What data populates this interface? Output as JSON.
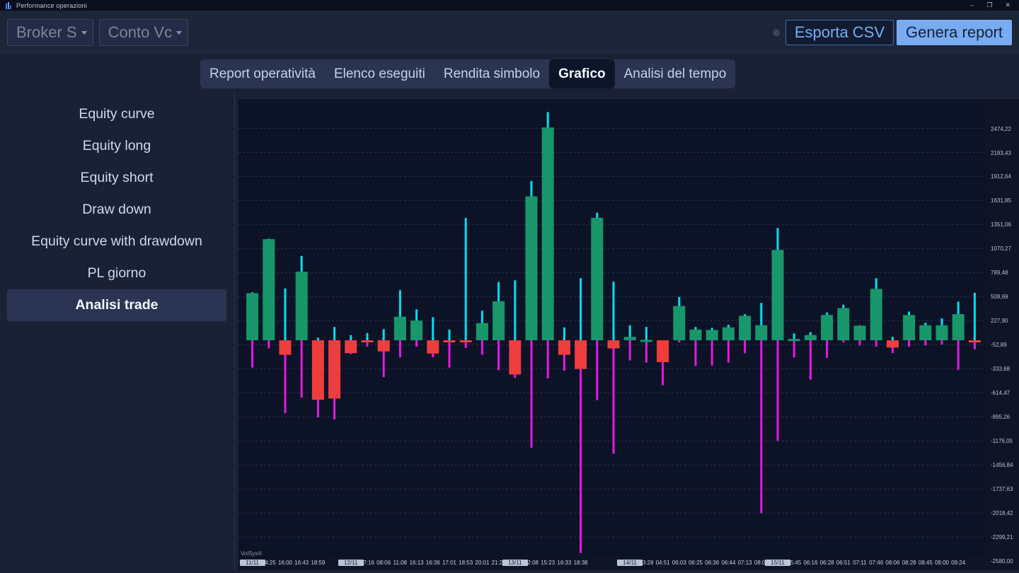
{
  "window": {
    "title": "Performance operazioni",
    "minimize": "–",
    "restore": "❐",
    "close": "✕"
  },
  "toolbar": {
    "broker_label": "Broker S",
    "conto_label": "Conto Vc",
    "options_icon": "◎",
    "export_csv_label": "Esporta CSV",
    "generate_report_label": "Genera report"
  },
  "tabs": [
    {
      "label": "Report operatività",
      "active": false
    },
    {
      "label": "Elenco eseguiti",
      "active": false
    },
    {
      "label": "Rendita simbolo",
      "active": false
    },
    {
      "label": "Grafico",
      "active": true
    },
    {
      "label": "Analisi del tempo",
      "active": false
    }
  ],
  "sidebar": {
    "items": [
      {
        "label": "Equity curve",
        "selected": false
      },
      {
        "label": "Equity long",
        "selected": false
      },
      {
        "label": "Equity short",
        "selected": false
      },
      {
        "label": "Draw down",
        "selected": false
      },
      {
        "label": "Equity curve with drawdown",
        "selected": false
      },
      {
        "label": "PL giorno",
        "selected": false
      },
      {
        "label": "Analisi trade",
        "selected": true
      }
    ]
  },
  "chart_data": {
    "type": "bar",
    "subtype": "trade-analysis-candles",
    "title": "Analisi trade",
    "watermark": "VolSys®",
    "grid": "dashed-horizontal",
    "legend_position": "none",
    "ylim": [
      -2580,
      2800
    ],
    "colors": {
      "profit_bar": "#17976a",
      "loss_bar": "#ee3d3d",
      "mfe_wick": "#00dff2",
      "mae_wick": "#e519e5"
    },
    "y_ticks": [
      {
        "label": "2474,22",
        "value": 2474.22
      },
      {
        "label": "2193,43",
        "value": 2193.43
      },
      {
        "label": "1912,64",
        "value": 1912.64
      },
      {
        "label": "1631,85",
        "value": 1631.85
      },
      {
        "label": "1351,06",
        "value": 1351.06
      },
      {
        "label": "1070,27",
        "value": 1070.27
      },
      {
        "label": "789,48",
        "value": 789.48
      },
      {
        "label": "508,69",
        "value": 508.69
      },
      {
        "label": "227,90",
        "value": 227.9
      },
      {
        "label": "-52,89",
        "value": -52.89
      },
      {
        "label": "-333,68",
        "value": -333.68
      },
      {
        "label": "-614,47",
        "value": -614.47
      },
      {
        "label": "-895,26",
        "value": -895.26
      },
      {
        "label": "-1176,05",
        "value": -1176.05
      },
      {
        "label": "-1456,84",
        "value": -1456.84
      },
      {
        "label": "-1737,63",
        "value": -1737.63
      },
      {
        "label": "-2018,42",
        "value": -2018.42
      },
      {
        "label": "-2299,21",
        "value": -2299.21
      },
      {
        "label": "-2580,00",
        "value": -2580.0
      }
    ],
    "bars": [
      {
        "label": "11/11",
        "v": 550,
        "hi": 560,
        "lo": -320
      },
      {
        "label": "14:25",
        "v": 1180,
        "hi": 1185,
        "lo": -95
      },
      {
        "label": "16:00",
        "v": -170,
        "hi": 605,
        "lo": -850
      },
      {
        "label": "16:43",
        "v": 800,
        "hi": 985,
        "lo": -670
      },
      {
        "label": "18:59",
        "v": -695,
        "hi": 30,
        "lo": -900
      },
      {
        "label": null,
        "v": -680,
        "hi": 155,
        "lo": -925
      },
      {
        "label": "12/11",
        "v": -150,
        "hi": 60,
        "lo": -160
      },
      {
        "label": "07:16",
        "v": -15,
        "hi": 85,
        "lo": -75
      },
      {
        "label": "08:06",
        "v": -130,
        "hi": 130,
        "lo": -430
      },
      {
        "label": "11:08",
        "v": 275,
        "hi": 585,
        "lo": -200
      },
      {
        "label": "16:13",
        "v": 230,
        "hi": 360,
        "lo": -75
      },
      {
        "label": "16:36",
        "v": -155,
        "hi": 270,
        "lo": -200
      },
      {
        "label": "17:01",
        "v": -15,
        "hi": 125,
        "lo": -320
      },
      {
        "label": "18:53",
        "v": -10,
        "hi": 1430,
        "lo": -90
      },
      {
        "label": "20:01",
        "v": 200,
        "hi": 345,
        "lo": -170
      },
      {
        "label": "21:28",
        "v": 455,
        "hi": 680,
        "lo": -350
      },
      {
        "label": "13/11",
        "v": -400,
        "hi": 700,
        "lo": -440
      },
      {
        "label": "12:08",
        "v": 1680,
        "hi": 1860,
        "lo": -1255
      },
      {
        "label": "15:23",
        "v": 2485,
        "hi": 2665,
        "lo": -445
      },
      {
        "label": "16:33",
        "v": -170,
        "hi": 150,
        "lo": -355
      },
      {
        "label": "18:38",
        "v": -335,
        "hi": 725,
        "lo": -2485
      },
      {
        "label": null,
        "v": 1430,
        "hi": 1490,
        "lo": -700
      },
      {
        "label": null,
        "v": -95,
        "hi": 685,
        "lo": -1325
      },
      {
        "label": "14/11",
        "v": 40,
        "hi": 175,
        "lo": -235
      },
      {
        "label": "03:28",
        "v": 5,
        "hi": 155,
        "lo": -260
      },
      {
        "label": "04:51",
        "v": -255,
        "hi": 0,
        "lo": -525
      },
      {
        "label": "06:03",
        "v": 400,
        "hi": 505,
        "lo": -25
      },
      {
        "label": "06:25",
        "v": 125,
        "hi": 155,
        "lo": -300
      },
      {
        "label": "06:36",
        "v": 120,
        "hi": 145,
        "lo": -295
      },
      {
        "label": "06:44",
        "v": 150,
        "hi": 180,
        "lo": -260
      },
      {
        "label": "07:13",
        "v": 285,
        "hi": 305,
        "lo": -150
      },
      {
        "label": "08:06",
        "v": 175,
        "hi": 435,
        "lo": -2020
      },
      {
        "label": "15/11",
        "v": 1055,
        "hi": 1310,
        "lo": -1175
      },
      {
        "label": "05:45",
        "v": 15,
        "hi": 80,
        "lo": -200
      },
      {
        "label": "06:16",
        "v": 60,
        "hi": 95,
        "lo": -460
      },
      {
        "label": "06:28",
        "v": 295,
        "hi": 325,
        "lo": -205
      },
      {
        "label": "06:51",
        "v": 375,
        "hi": 415,
        "lo": -25
      },
      {
        "label": "07:11",
        "v": 170,
        "hi": 175,
        "lo": -60
      },
      {
        "label": "07:46",
        "v": 600,
        "hi": 725,
        "lo": -75
      },
      {
        "label": "08:06",
        "v": -85,
        "hi": 40,
        "lo": -150
      },
      {
        "label": "08:28",
        "v": 295,
        "hi": 335,
        "lo": -75
      },
      {
        "label": "08:45",
        "v": 175,
        "hi": 205,
        "lo": -60
      },
      {
        "label": "09:00",
        "v": 175,
        "hi": 255,
        "lo": -50
      },
      {
        "label": "09:24",
        "v": 305,
        "hi": 450,
        "lo": -345
      },
      {
        "label": null,
        "v": -10,
        "hi": 555,
        "lo": -105
      }
    ]
  }
}
